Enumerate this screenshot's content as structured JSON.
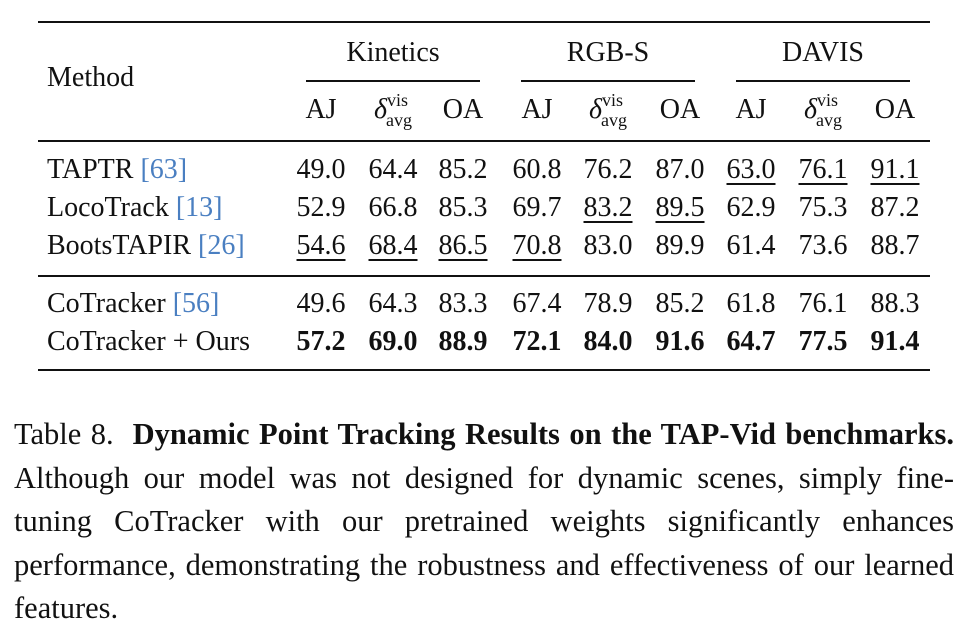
{
  "table": {
    "method_header": "Method",
    "groups": [
      "Kinetics",
      "RGB-S",
      "DAVIS"
    ],
    "metrics": [
      {
        "kind": "plain",
        "label": "AJ"
      },
      {
        "kind": "delta",
        "label": "δ",
        "sup": "vis",
        "sub": "avg"
      },
      {
        "kind": "plain",
        "label": "OA"
      }
    ],
    "rows": [
      {
        "method": "TAPTR ",
        "cite": "[63]",
        "values": [
          "49.0",
          "64.4",
          "85.2",
          "60.8",
          "76.2",
          "87.0",
          "63.0",
          "76.1",
          "91.1"
        ],
        "underline": [
          6,
          7,
          8
        ],
        "bold": false
      },
      {
        "method": "LocoTrack ",
        "cite": "[13]",
        "values": [
          "52.9",
          "66.8",
          "85.3",
          "69.7",
          "83.2",
          "89.5",
          "62.9",
          "75.3",
          "87.2"
        ],
        "underline": [
          4,
          5
        ],
        "bold": false
      },
      {
        "method": "BootsTAPIR ",
        "cite": "[26]",
        "values": [
          "54.6",
          "68.4",
          "86.5",
          "70.8",
          "83.0",
          "89.9",
          "61.4",
          "73.6",
          "88.7"
        ],
        "underline": [
          0,
          1,
          2,
          3
        ],
        "bold": false
      },
      {
        "method": "CoTracker ",
        "cite": "[56]",
        "values": [
          "49.6",
          "64.3",
          "83.3",
          "67.4",
          "78.9",
          "85.2",
          "61.8",
          "76.1",
          "88.3"
        ],
        "underline": [],
        "bold": false
      },
      {
        "method": "CoTracker + Ours",
        "cite": "",
        "values": [
          "57.2",
          "69.0",
          "88.9",
          "72.1",
          "84.0",
          "91.6",
          "64.7",
          "77.5",
          "91.4"
        ],
        "underline": [],
        "bold": true
      }
    ]
  },
  "caption": {
    "label": "Table 8.",
    "title": "Dynamic Point Tracking Results on the TAP-Vid benchmarks.",
    "body": "Although our model was not designed for dynamic scenes, simply fine-tuning CoTracker with our pretrained weights significantly enhances performance, demonstrating the robustness and effectiveness of our learned features."
  }
}
